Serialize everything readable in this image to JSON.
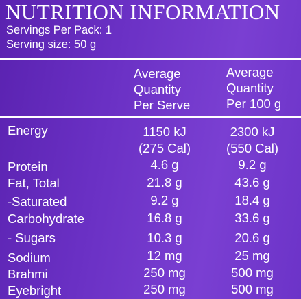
{
  "title": "NUTRITION INFORMATION",
  "servings_per_pack": "Servings Per Pack: 1",
  "serving_size": "Serving size: 50 g",
  "columns": {
    "per_serve": [
      "Average",
      "Quantity",
      "Per Serve"
    ],
    "per_100g": [
      "Average",
      "Quantity",
      "Per 100 g"
    ]
  },
  "rows": [
    {
      "label": "Energy",
      "per_serve": "1150 kJ",
      "per_100g": "2300 kJ"
    },
    {
      "label": "",
      "per_serve": "(275 Cal)",
      "per_100g": "(550 Cal)"
    },
    {
      "label": "Protein",
      "per_serve": "4.6 g",
      "per_100g": "9.2 g"
    },
    {
      "label": "Fat, Total",
      "per_serve": "21.8 g",
      "per_100g": "43.6 g"
    },
    {
      "label": "-Saturated",
      "per_serve": "9.2 g",
      "per_100g": "18.4 g"
    },
    {
      "label": "Carbohydrate",
      "per_serve": "16.8 g",
      "per_100g": "33.6 g"
    },
    {
      "label": "- Sugars",
      "per_serve": "10.3 g",
      "per_100g": "20.6 g"
    },
    {
      "label": "Sodium",
      "per_serve": "12 mg",
      "per_100g": "25 mg"
    },
    {
      "label": "Brahmi",
      "per_serve": "250 mg",
      "per_100g": "500 mg"
    },
    {
      "label": "Eyebright",
      "per_serve": "250 mg",
      "per_100g": "500 mg"
    }
  ]
}
